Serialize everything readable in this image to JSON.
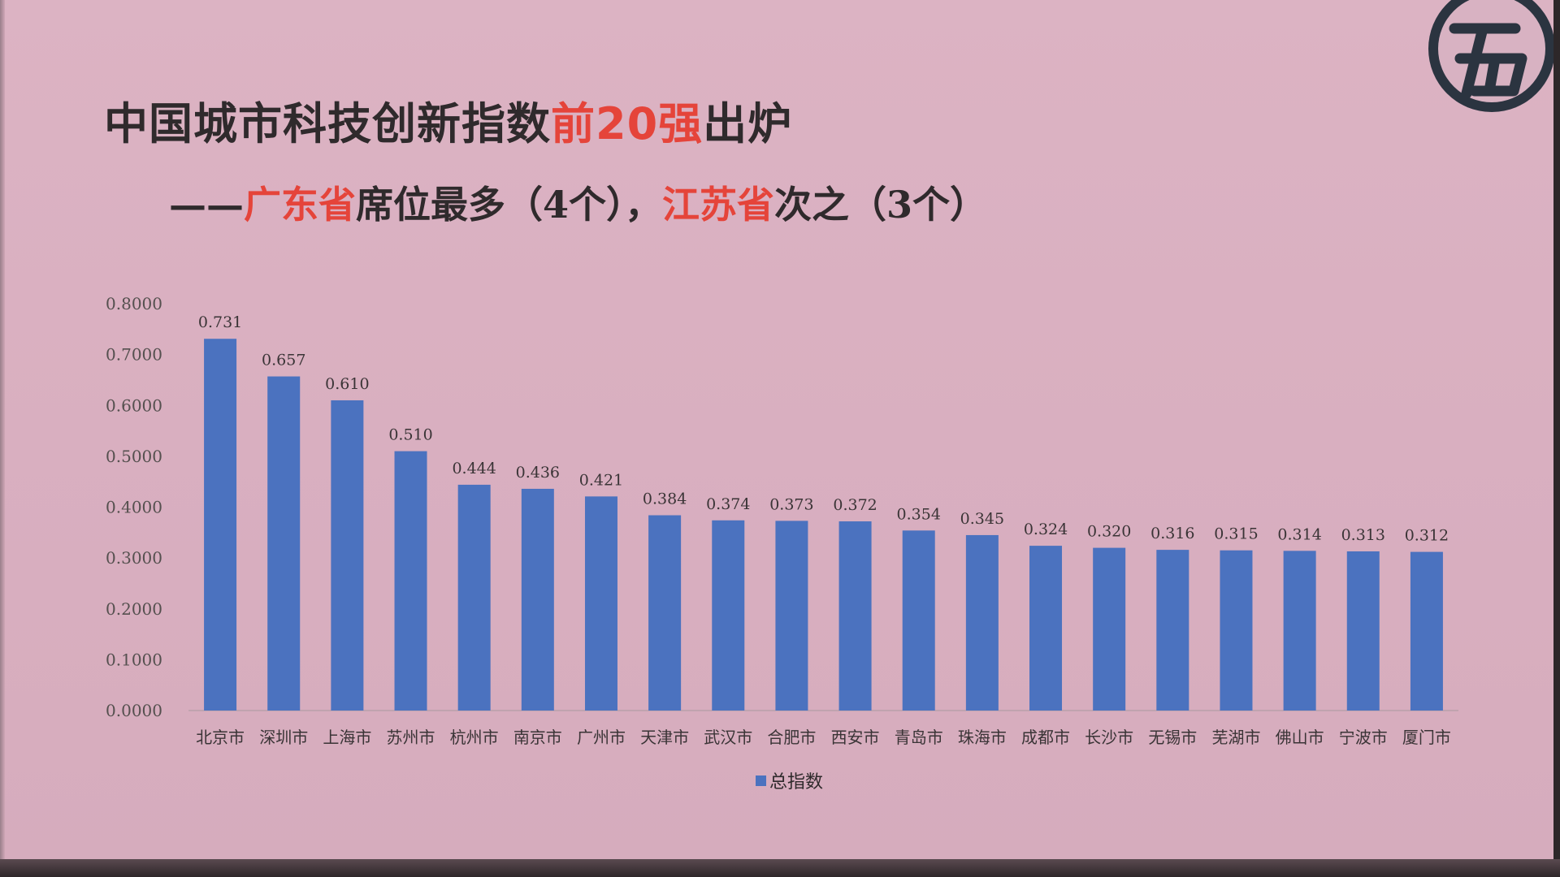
{
  "title": {
    "part1": "中国城市科技创新指数",
    "highlight": "前20强",
    "part2": "出炉"
  },
  "subtitle": {
    "dash": "——",
    "prov1": "广东省",
    "text1": "席位最多（4个），",
    "prov2": "江苏省",
    "text2": "次之（3个）"
  },
  "colors": {
    "bar": "#4b72bf",
    "accent_red": "#e5443a",
    "text": "#2f2a2c",
    "background": "#dab1c1"
  },
  "logo": {
    "icon": "broadcaster-logo-icon"
  },
  "chart_data": {
    "type": "bar",
    "categories": [
      "北京市",
      "深圳市",
      "上海市",
      "苏州市",
      "杭州市",
      "南京市",
      "广州市",
      "天津市",
      "武汉市",
      "合肥市",
      "西安市",
      "青岛市",
      "珠海市",
      "成都市",
      "长沙市",
      "无锡市",
      "芜湖市",
      "佛山市",
      "宁波市",
      "厦门市"
    ],
    "series": [
      {
        "name": "总指数",
        "values": [
          0.731,
          0.657,
          0.61,
          0.51,
          0.444,
          0.436,
          0.421,
          0.384,
          0.374,
          0.373,
          0.372,
          0.354,
          0.345,
          0.324,
          0.32,
          0.316,
          0.315,
          0.314,
          0.313,
          0.312
        ]
      }
    ],
    "value_labels": [
      "0.731",
      "0.657",
      "0.610",
      "0.510",
      "0.444",
      "0.436",
      "0.421",
      "0.384",
      "0.374",
      "0.373",
      "0.372",
      "0.354",
      "0.345",
      "0.324",
      "0.320",
      "0.316",
      "0.315",
      "0.314",
      "0.313",
      "0.312"
    ],
    "yticks": [
      "0.0000",
      "0.1000",
      "0.2000",
      "0.3000",
      "0.4000",
      "0.5000",
      "0.6000",
      "0.7000",
      "0.8000"
    ],
    "ylim": [
      0,
      0.8
    ],
    "grid": false,
    "legend_position": "bottom-center",
    "xlabel": "",
    "ylabel": ""
  }
}
